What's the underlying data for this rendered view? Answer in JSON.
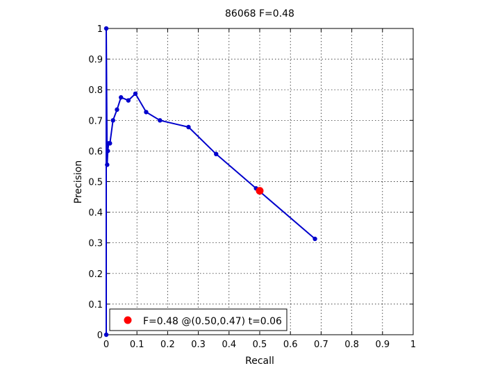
{
  "chart_data": {
    "type": "line",
    "title": "86068 F=0.48",
    "xlabel": "Recall",
    "ylabel": "Precision",
    "xlim": [
      0,
      1
    ],
    "ylim": [
      0,
      1
    ],
    "grid": true,
    "xticks": [
      "0",
      "0.1",
      "0.2",
      "0.3",
      "0.4",
      "0.5",
      "0.6",
      "0.7",
      "0.8",
      "0.9",
      "1"
    ],
    "yticks": [
      "0",
      "0.1",
      "0.2",
      "0.3",
      "0.4",
      "0.5",
      "0.6",
      "0.7",
      "0.8",
      "0.9",
      "1"
    ],
    "legend_position": "bottom-left",
    "series": [
      {
        "color": "#0000cc",
        "x": [
          0.0,
          0.0,
          0.003,
          0.005,
          0.008,
          0.012,
          0.022,
          0.035,
          0.048,
          0.072,
          0.095,
          0.13,
          0.175,
          0.268,
          0.358,
          0.488,
          0.68
        ],
        "y": [
          0.0,
          1.0,
          0.555,
          0.6,
          0.625,
          0.625,
          0.7,
          0.735,
          0.775,
          0.765,
          0.787,
          0.727,
          0.7,
          0.678,
          0.59,
          0.478,
          0.313
        ]
      }
    ],
    "highlight": {
      "label": "F=0.48 @(0.50,0.47) t=0.06",
      "x": 0.5,
      "y": 0.47,
      "color": "#ff0000"
    }
  }
}
